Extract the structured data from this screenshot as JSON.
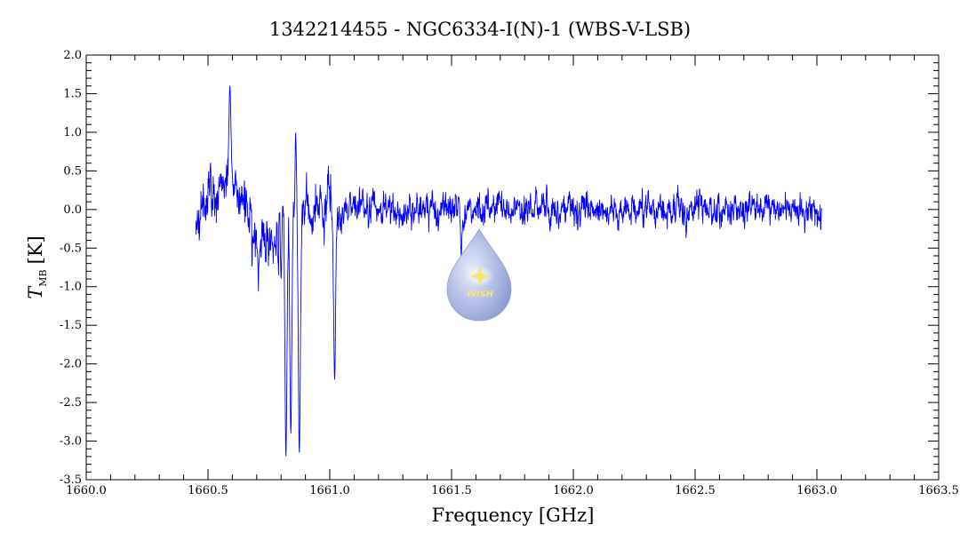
{
  "chart_data": {
    "type": "line",
    "title": "1342214455 - NGC6334-I(N)-1 (WBS-V-LSB)",
    "xlabel": "Frequency [GHz]",
    "ylabel_symbol": "T",
    "ylabel_subscript": "MB",
    "ylabel_unit": "[K]",
    "xlim": [
      1660.0,
      1663.5
    ],
    "ylim": [
      -3.5,
      2.0
    ],
    "x_ticks": [
      "1660.0",
      "1660.5",
      "1661.0",
      "1661.5",
      "1662.0",
      "1662.5",
      "1663.0",
      "1663.5"
    ],
    "y_ticks": [
      "2.0",
      "1.5",
      "1.0",
      "0.5",
      "0.0",
      "-0.5",
      "-1.0",
      "-1.5",
      "-2.0",
      "-2.5",
      "-3.0",
      "-3.5"
    ],
    "grid": false,
    "series": [
      {
        "color": "#0000ff",
        "x_range": [
          1660.45,
          1663.02
        ],
        "noise_rms_K": 0.22,
        "features": [
          {
            "x": 1660.59,
            "y": 1.6,
            "kind": "emission spike"
          },
          {
            "x": 1660.8,
            "y": -0.9,
            "kind": "absorption"
          },
          {
            "x": 1660.82,
            "y": -3.2,
            "kind": "absorption"
          },
          {
            "x": 1660.84,
            "y": -2.9,
            "kind": "absorption"
          },
          {
            "x": 1660.86,
            "y": 1.0,
            "kind": "emission"
          },
          {
            "x": 1660.875,
            "y": -3.15,
            "kind": "absorption"
          },
          {
            "x": 1661.02,
            "y": -2.2,
            "kind": "absorption"
          },
          {
            "x": 1661.54,
            "y": -0.6,
            "kind": "absorption"
          }
        ]
      }
    ],
    "logo_text": "WISH",
    "colors": {
      "line": "#0000ff",
      "axes": "#000000",
      "logo_drop": "#8e9fd6",
      "logo_star": "#f2e25a"
    }
  }
}
